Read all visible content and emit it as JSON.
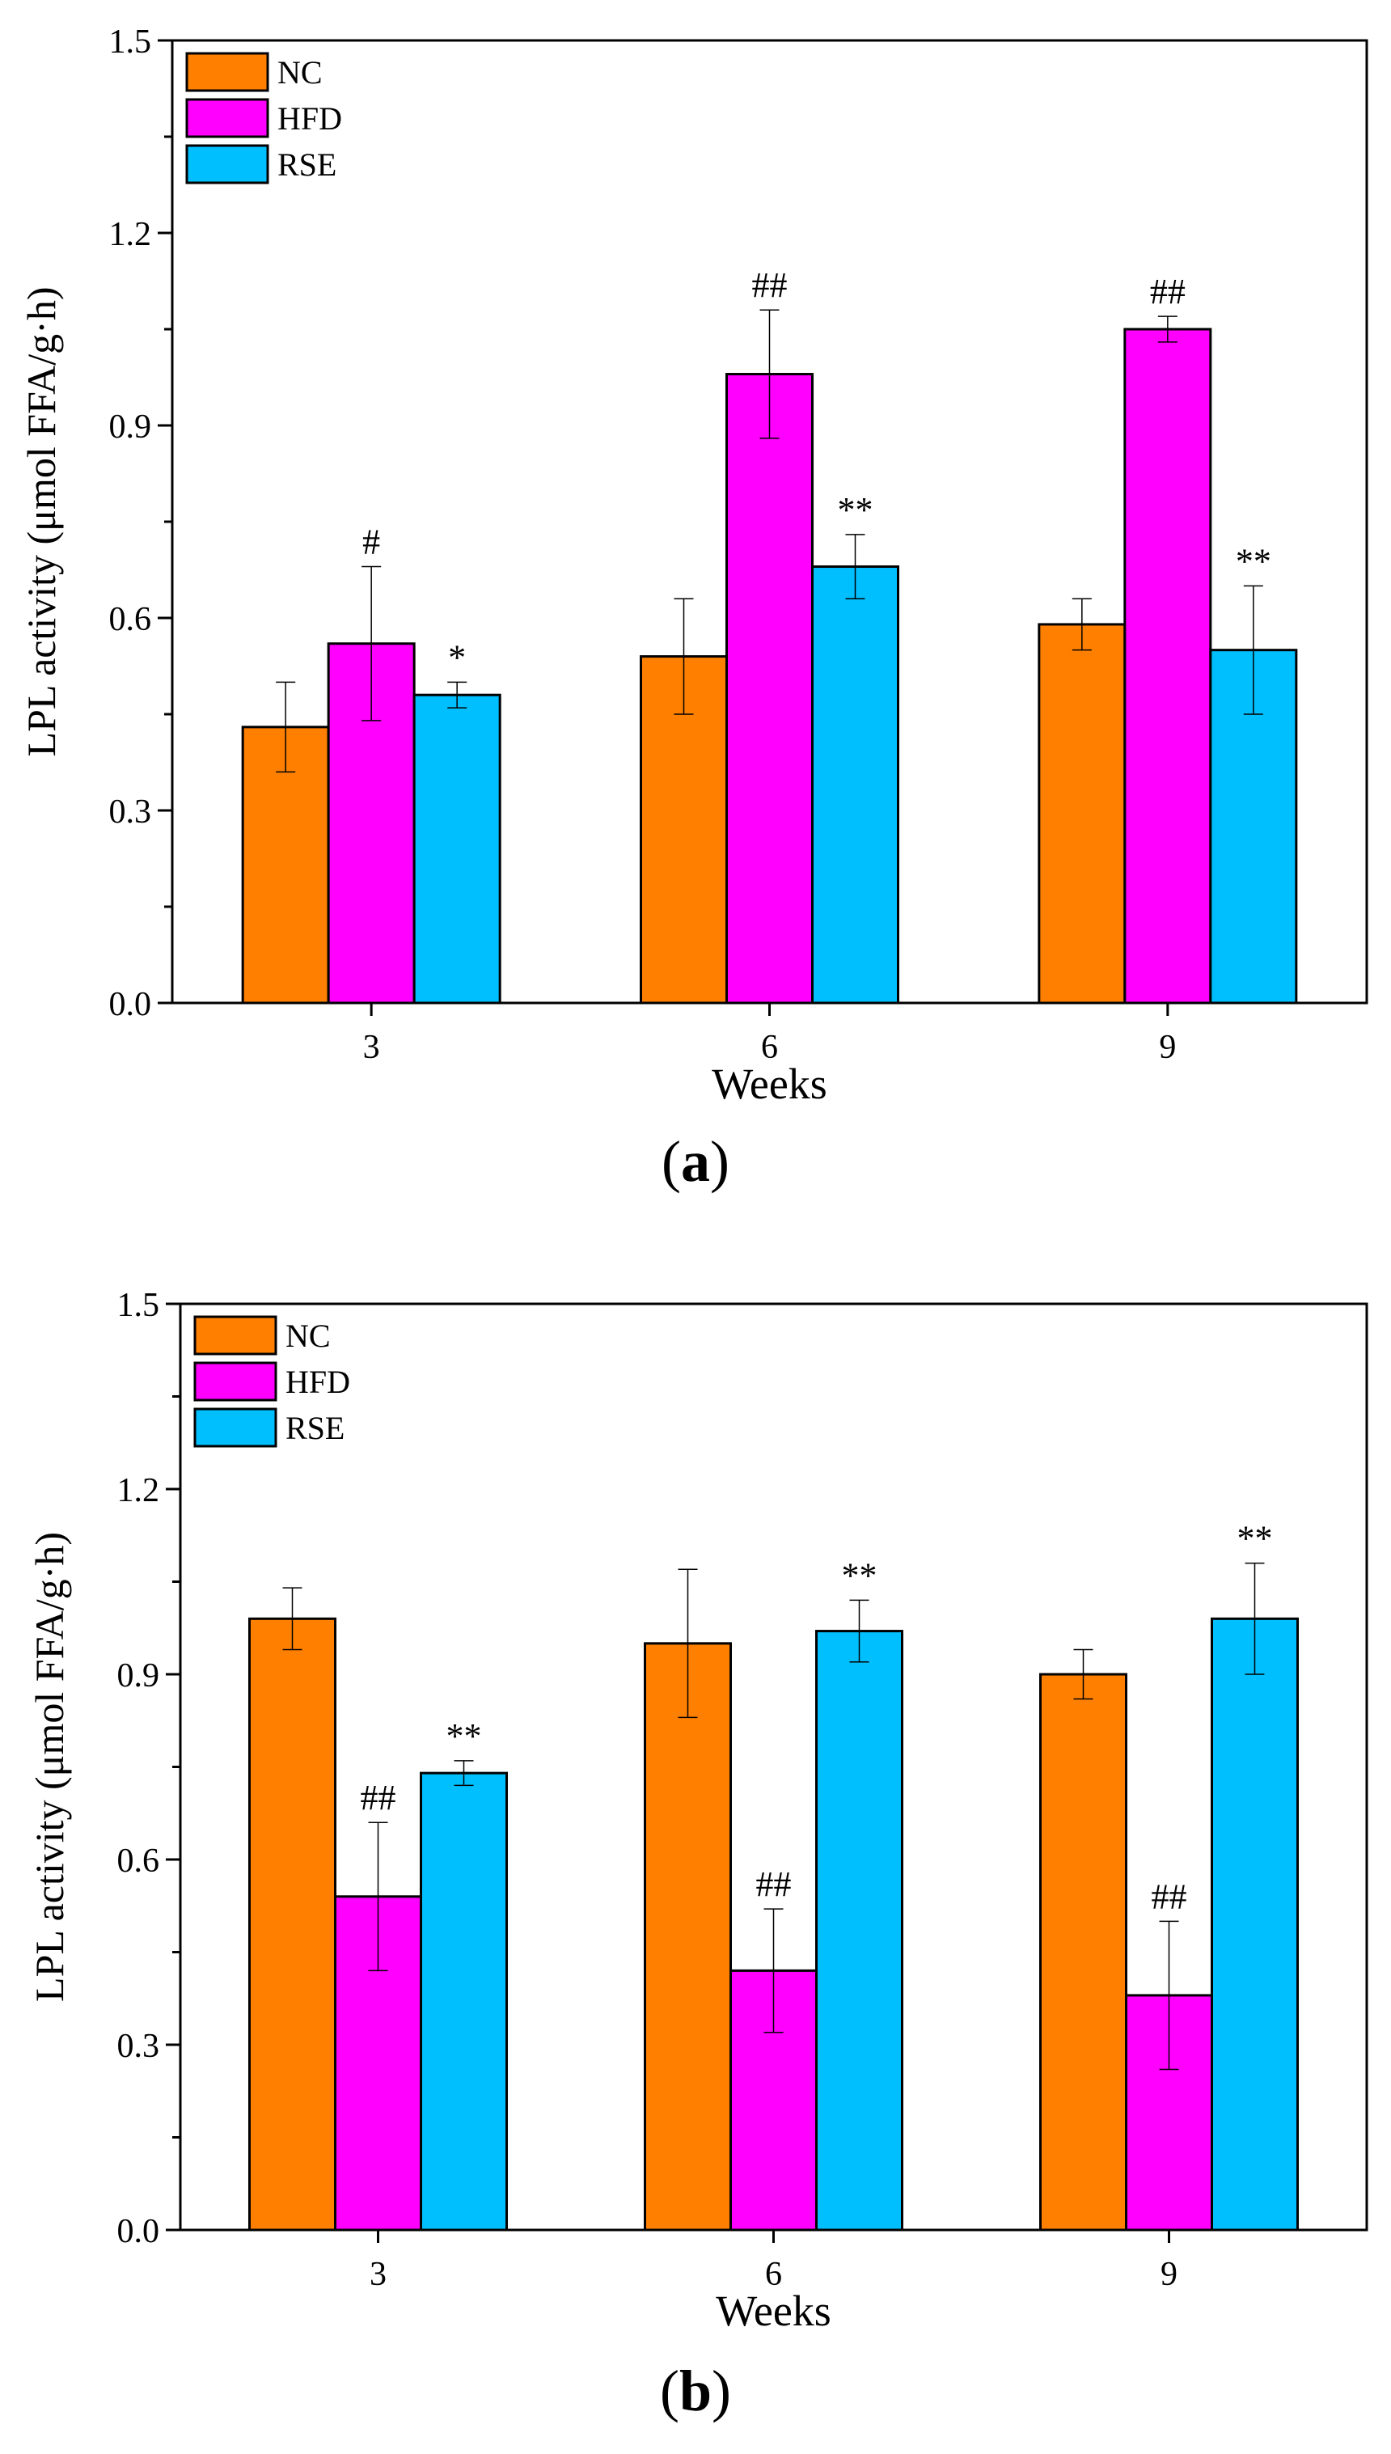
{
  "chart_data": [
    {
      "type": "bar",
      "panel_label": "a",
      "title": "",
      "xlabel": "Weeks",
      "ylabel": "LPL activity (μmol FFA/g·h)",
      "ylim": [
        0,
        1.5
      ],
      "yticks": [
        "0.0",
        "0.3",
        "0.6",
        "0.9",
        "1.2",
        "1.5"
      ],
      "categories": [
        "3",
        "6",
        "9"
      ],
      "legend_position": "top-left",
      "series": [
        {
          "name": "NC",
          "color": "#FF8000",
          "values": [
            0.43,
            0.54,
            0.59
          ],
          "errors": [
            0.07,
            0.09,
            0.04
          ],
          "annotations": [
            "",
            "",
            ""
          ]
        },
        {
          "name": "HFD",
          "color": "#FF00FF",
          "values": [
            0.56,
            0.98,
            1.05
          ],
          "errors": [
            0.12,
            0.1,
            0.02
          ],
          "annotations": [
            "#",
            "##",
            "##"
          ]
        },
        {
          "name": "RSE",
          "color": "#00BFFF",
          "values": [
            0.48,
            0.68,
            0.55
          ],
          "errors": [
            0.02,
            0.05,
            0.1
          ],
          "annotations": [
            "*",
            "**",
            "**"
          ]
        }
      ]
    },
    {
      "type": "bar",
      "panel_label": "b",
      "title": "",
      "xlabel": "Weeks",
      "ylabel": "LPL activity (μmol FFA/g·h)",
      "ylim": [
        0,
        1.5
      ],
      "yticks": [
        "0.0",
        "0.3",
        "0.6",
        "0.9",
        "1.2",
        "1.5"
      ],
      "categories": [
        "3",
        "6",
        "9"
      ],
      "legend_position": "top-left",
      "series": [
        {
          "name": "NC",
          "color": "#FF8000",
          "values": [
            0.99,
            0.95,
            0.9
          ],
          "errors": [
            0.05,
            0.12,
            0.04
          ],
          "annotations": [
            "",
            "",
            ""
          ]
        },
        {
          "name": "HFD",
          "color": "#FF00FF",
          "values": [
            0.54,
            0.42,
            0.38
          ],
          "errors": [
            0.12,
            0.1,
            0.12
          ],
          "annotations": [
            "##",
            "##",
            "##"
          ]
        },
        {
          "name": "RSE",
          "color": "#00BFFF",
          "values": [
            0.74,
            0.97,
            0.99
          ],
          "errors": [
            0.02,
            0.05,
            0.09
          ],
          "annotations": [
            "**",
            "**",
            "**"
          ]
        }
      ]
    }
  ],
  "captions": [
    {
      "open": "(",
      "label": "a",
      "close": ")"
    },
    {
      "open": "(",
      "label": "b",
      "close": ")"
    }
  ]
}
